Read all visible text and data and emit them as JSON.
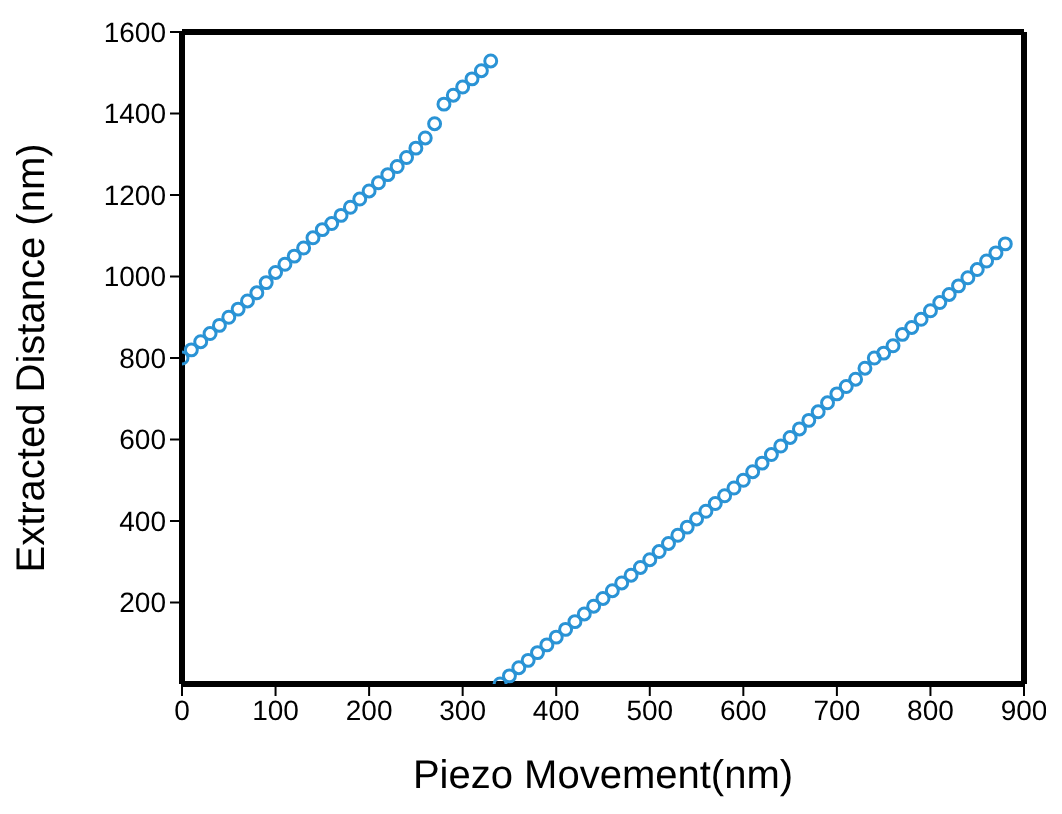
{
  "chart_data": {
    "type": "scatter",
    "xlabel": "Piezo Movement(nm)",
    "ylabel": "Extracted Distance (nm)",
    "marker": "circle",
    "legend": false,
    "xlim": [
      0,
      900
    ],
    "xticks": [
      0,
      100,
      200,
      300,
      400,
      500,
      600,
      700,
      800,
      900
    ],
    "ylim": [
      0,
      1600
    ],
    "yticks": [
      200,
      400,
      600,
      800,
      1000,
      1200,
      1400,
      1600
    ],
    "series": [
      {
        "color": "#2a93d5",
        "x": [
          0,
          10,
          20,
          30,
          40,
          50,
          60,
          70,
          80,
          90,
          100,
          110,
          120,
          130,
          140,
          150,
          160,
          170,
          180,
          190,
          200,
          210,
          220,
          230,
          240,
          250,
          260,
          270,
          280,
          290,
          300,
          310,
          320,
          330,
          340,
          350,
          360,
          370,
          380,
          390,
          400,
          410,
          420,
          430,
          440,
          450,
          460,
          470,
          480,
          490,
          500,
          510,
          520,
          530,
          540,
          550,
          560,
          570,
          580,
          590,
          600,
          610,
          620,
          630,
          640,
          650,
          660,
          670,
          680,
          690,
          700,
          710,
          720,
          730,
          740,
          750,
          760,
          770,
          780,
          790,
          800,
          810,
          820,
          830,
          840,
          850,
          860,
          870,
          880
        ],
        "values": [
          800,
          820,
          840,
          860,
          880,
          900,
          920,
          940,
          960,
          985,
          1010,
          1030,
          1050,
          1070,
          1095,
          1115,
          1130,
          1150,
          1170,
          1190,
          1210,
          1230,
          1250,
          1270,
          1292,
          1315,
          1340,
          1375,
          1423,
          1445,
          1465,
          1485,
          1505,
          1529,
          0,
          20,
          40,
          58,
          77,
          96,
          115,
          134,
          153,
          172,
          191,
          210,
          229,
          248,
          267,
          286,
          305,
          325,
          345,
          365,
          385,
          405,
          424,
          443,
          462,
          481,
          500,
          521,
          542,
          563,
          584,
          605,
          626,
          647,
          668,
          690,
          712,
          730,
          748,
          775,
          800,
          812,
          830,
          858,
          875,
          895,
          916,
          936,
          956,
          977,
          997,
          1017,
          1038,
          1058,
          1080
        ]
      }
    ]
  }
}
